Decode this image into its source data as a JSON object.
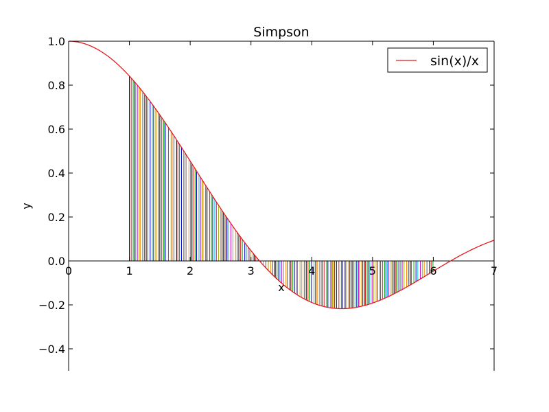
{
  "chart_data": {
    "type": "line",
    "title": "Simpson",
    "xlabel": "x",
    "ylabel": "y",
    "xlim": [
      0,
      7
    ],
    "ylim": [
      -0.5,
      1.0
    ],
    "xticks": [
      "0",
      "1",
      "2",
      "3",
      "4",
      "5",
      "6",
      "7"
    ],
    "yticks": [
      "−0.4",
      "−0.2",
      "0.0",
      "0.2",
      "0.4",
      "0.6",
      "0.8",
      "1.0"
    ],
    "grid": false,
    "legend_position": "top-right",
    "series": [
      {
        "name": "sin(x)/x",
        "function": "sin(x)/x",
        "x_range": [
          0,
          7
        ],
        "color": "#e41a1c"
      }
    ],
    "area_integration": {
      "x_range": [
        1,
        6
      ],
      "colors": [
        "#000000",
        "#e41a1c",
        "#00aa00",
        "#0000cc",
        "#00cccc",
        "#cc00cc",
        "#aaaa00",
        "#ff8800",
        "#555555"
      ]
    }
  }
}
